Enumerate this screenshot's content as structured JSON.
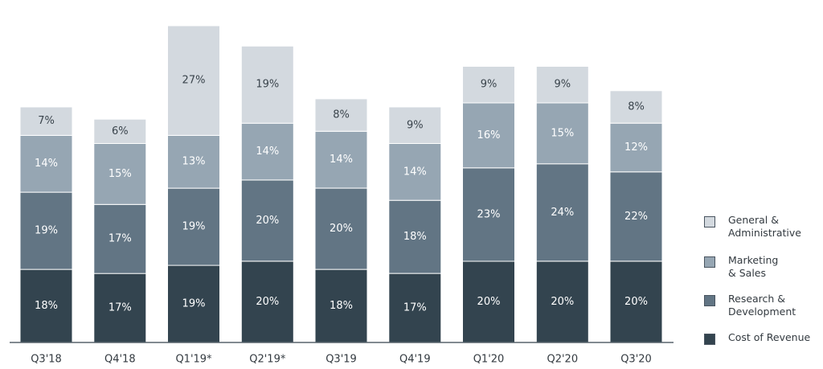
{
  "chart_data": {
    "type": "bar",
    "stacked": true,
    "categories": [
      "Q3'18",
      "Q4'18",
      "Q1'19*",
      "Q2'19*",
      "Q3'19",
      "Q4'19",
      "Q1'20",
      "Q2'20",
      "Q3'20"
    ],
    "series": [
      {
        "name": "Cost of Revenue",
        "values": [
          18,
          17,
          19,
          20,
          18,
          17,
          20,
          20,
          20
        ],
        "labels": [
          "18%",
          "17%",
          "19%",
          "20%",
          "18%",
          "17%",
          "20%",
          "20%",
          "20%"
        ],
        "color": "#33444f",
        "text_color": "#ffffff"
      },
      {
        "name": "Research & Development",
        "values": [
          19,
          17,
          19,
          20,
          20,
          18,
          23,
          24,
          22
        ],
        "labels": [
          "19%",
          "17%",
          "19%",
          "20%",
          "20%",
          "18%",
          "23%",
          "24%",
          "22%"
        ],
        "color": "#627584",
        "text_color": "#ffffff"
      },
      {
        "name": "Marketing & Sales",
        "values": [
          14,
          15,
          13,
          14,
          14,
          14,
          16,
          15,
          12
        ],
        "labels": [
          "14%",
          "15%",
          "13%",
          "14%",
          "14%",
          "14%",
          "16%",
          "15%",
          "12%"
        ],
        "color": "#96a6b3",
        "text_color": "#ffffff"
      },
      {
        "name": "General & Administrative",
        "values": [
          7,
          6,
          27,
          19,
          8,
          9,
          9,
          9,
          8
        ],
        "labels": [
          "7%",
          "6%",
          "27%",
          "19%",
          "8%",
          "9%",
          "9%",
          "9%",
          "8%"
        ],
        "color": "#d3d9df",
        "text_color": "#3a444c"
      }
    ],
    "legend": {
      "placement": "right",
      "items": [
        {
          "label": "General &\nAdministrative",
          "color": "#d3d9df"
        },
        {
          "label": "Marketing\n& Sales",
          "color": "#96a6b3"
        },
        {
          "label": "Research &\nDevelopment",
          "color": "#627584"
        },
        {
          "label": "Cost of Revenue",
          "color": "#33444f"
        }
      ]
    },
    "ylim": [
      0,
      78
    ],
    "grid": false,
    "title": "",
    "xlabel": "",
    "ylabel": ""
  }
}
